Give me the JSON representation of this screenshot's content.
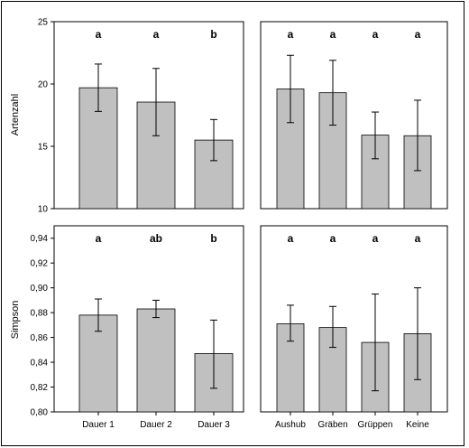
{
  "chart_data": [
    {
      "type": "bar",
      "panel": "top-left",
      "categories": [
        "",
        "",
        ""
      ],
      "values": [
        19.7,
        18.55,
        15.5
      ],
      "error_low": [
        17.8,
        15.85,
        13.85
      ],
      "error_high": [
        21.6,
        21.25,
        17.15
      ],
      "sig_labels": [
        "a",
        "a",
        "b"
      ],
      "ylabel": "Artenzahl",
      "ylim": [
        10,
        25
      ],
      "yticks": [
        "10",
        "15",
        "20",
        "25"
      ]
    },
    {
      "type": "bar",
      "panel": "top-right",
      "categories": [
        "",
        "",
        "",
        ""
      ],
      "values": [
        19.6,
        19.3,
        15.9,
        15.85
      ],
      "error_low": [
        16.9,
        16.7,
        14.0,
        13.05
      ],
      "error_high": [
        22.3,
        21.9,
        17.75,
        18.7
      ],
      "sig_labels": [
        "a",
        "a",
        "a",
        "a"
      ],
      "ylabel": "",
      "ylim": [
        10,
        25
      ],
      "yticks": []
    },
    {
      "type": "bar",
      "panel": "bottom-left",
      "categories": [
        "Dauer 1",
        "Dauer 2",
        "Dauer 3"
      ],
      "values": [
        0.878,
        0.883,
        0.847
      ],
      "error_low": [
        0.865,
        0.876,
        0.819
      ],
      "error_high": [
        0.891,
        0.89,
        0.874
      ],
      "sig_labels": [
        "a",
        "ab",
        "b"
      ],
      "ylabel": "Simpson",
      "ylim": [
        0.8,
        0.95
      ],
      "yticks": [
        "0,80",
        "0,82",
        "0,84",
        "0,86",
        "0,88",
        "0,90",
        "0,92",
        "0,94"
      ]
    },
    {
      "type": "bar",
      "panel": "bottom-right",
      "categories": [
        "Aushub",
        "Gräben",
        "Grüppen",
        "Keine"
      ],
      "values": [
        0.871,
        0.868,
        0.856,
        0.863
      ],
      "error_low": [
        0.857,
        0.852,
        0.817,
        0.826
      ],
      "error_high": [
        0.886,
        0.885,
        0.895,
        0.9
      ],
      "sig_labels": [
        "a",
        "a",
        "a",
        "a"
      ],
      "ylabel": "",
      "ylim": [
        0.8,
        0.95
      ],
      "yticks": []
    }
  ],
  "colors": {
    "bar_fill": "#c0c0c0",
    "bar_stroke": "#000000",
    "frame": "#000000"
  }
}
